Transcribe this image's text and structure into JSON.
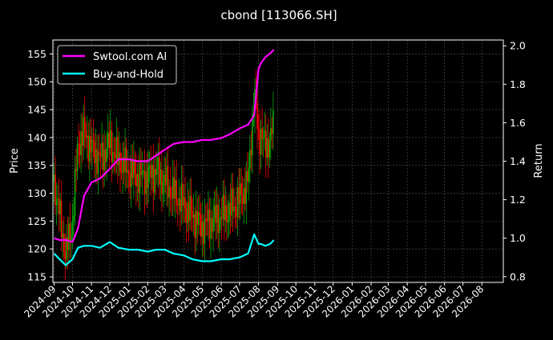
{
  "chart_data": {
    "type": "line",
    "title": "cbond [113066.SH]",
    "ylabel_left": "Price",
    "ylabel_right": "Return",
    "ylim_left": [
      114,
      157.5
    ],
    "ylim_right": [
      0.77,
      2.03
    ],
    "left_ticks": [
      115,
      120,
      125,
      130,
      135,
      140,
      145,
      150,
      155
    ],
    "right_ticks": [
      "0.8",
      "1.0",
      "1.2",
      "1.4",
      "1.6",
      "1.8",
      "2.0"
    ],
    "x_ticks": [
      "2024-09",
      "2024-10",
      "2024-11",
      "2024-12",
      "2025-01",
      "2025-02",
      "2025-03",
      "2025-04",
      "2025-05",
      "2025-06",
      "2025-07",
      "2025-08",
      "2025-09",
      "2025-10",
      "2025-11",
      "2025-12",
      "2026-01",
      "2026-02",
      "2026-03",
      "2026-04",
      "2026-05",
      "2026-06",
      "2026-07",
      "2026-08"
    ],
    "grid": true,
    "legend": "top-left",
    "colors": {
      "background": "#000000",
      "ai_line": "#ff00ff",
      "hold_line": "#00ffff",
      "up_candle": "#00aa00",
      "down_candle": "#ff0000",
      "grid": "#555555"
    },
    "series": [
      {
        "name": "Swtool.com AI",
        "axis": "right",
        "x": [
          "2024-09-01",
          "2024-09-10",
          "2024-09-20",
          "2024-10-01",
          "2024-10-10",
          "2024-10-20",
          "2024-11-01",
          "2024-11-15",
          "2024-12-01",
          "2024-12-15",
          "2025-01-01",
          "2025-01-15",
          "2025-02-01",
          "2025-02-15",
          "2025-03-01",
          "2025-03-15",
          "2025-04-01",
          "2025-04-15",
          "2025-05-01",
          "2025-05-15",
          "2025-06-01",
          "2025-06-15",
          "2025-07-01",
          "2025-07-15",
          "2025-07-25",
          "2025-08-01",
          "2025-08-05",
          "2025-08-12",
          "2025-08-20",
          "2025-08-26"
        ],
        "values": [
          1.0,
          0.99,
          0.99,
          0.98,
          1.05,
          1.22,
          1.29,
          1.31,
          1.36,
          1.41,
          1.41,
          1.4,
          1.4,
          1.43,
          1.46,
          1.49,
          1.5,
          1.5,
          1.51,
          1.51,
          1.52,
          1.54,
          1.57,
          1.59,
          1.64,
          1.88,
          1.91,
          1.94,
          1.96,
          1.98
        ]
      },
      {
        "name": "Buy-and-Hold",
        "axis": "right",
        "x": [
          "2024-09-01",
          "2024-09-10",
          "2024-09-20",
          "2024-10-01",
          "2024-10-10",
          "2024-10-20",
          "2024-11-01",
          "2024-11-15",
          "2024-12-01",
          "2024-12-15",
          "2025-01-01",
          "2025-01-15",
          "2025-02-01",
          "2025-02-15",
          "2025-03-01",
          "2025-03-15",
          "2025-04-01",
          "2025-04-15",
          "2025-05-01",
          "2025-05-15",
          "2025-06-01",
          "2025-06-15",
          "2025-07-01",
          "2025-07-15",
          "2025-07-25",
          "2025-08-01",
          "2025-08-05",
          "2025-08-12",
          "2025-08-20",
          "2025-08-26"
        ],
        "values": [
          0.92,
          0.89,
          0.86,
          0.89,
          0.95,
          0.96,
          0.96,
          0.95,
          0.98,
          0.95,
          0.94,
          0.94,
          0.93,
          0.94,
          0.94,
          0.92,
          0.91,
          0.89,
          0.88,
          0.88,
          0.89,
          0.89,
          0.9,
          0.92,
          1.02,
          0.97,
          0.97,
          0.96,
          0.97,
          0.99
        ]
      },
      {
        "name": "Price",
        "axis": "left",
        "x": [
          "2024-09-01",
          "2024-09-10",
          "2024-09-20",
          "2024-10-01",
          "2024-10-10",
          "2024-10-20",
          "2024-11-01",
          "2024-11-15",
          "2024-12-01",
          "2024-12-15",
          "2025-01-01",
          "2025-01-15",
          "2025-02-01",
          "2025-02-15",
          "2025-03-01",
          "2025-03-15",
          "2025-04-01",
          "2025-04-15",
          "2025-05-01",
          "2025-05-15",
          "2025-06-01",
          "2025-06-15",
          "2025-07-01",
          "2025-07-15",
          "2025-07-25",
          "2025-08-01",
          "2025-08-05",
          "2025-08-12",
          "2025-08-20",
          "2025-08-26"
        ],
        "values": [
          132,
          126,
          119,
          125,
          139,
          141,
          138,
          136,
          139,
          136,
          134,
          133,
          133,
          134,
          132,
          130,
          128,
          126,
          124,
          125,
          126,
          127,
          129,
          132,
          148,
          140,
          141,
          138,
          140,
          142
        ]
      }
    ]
  }
}
